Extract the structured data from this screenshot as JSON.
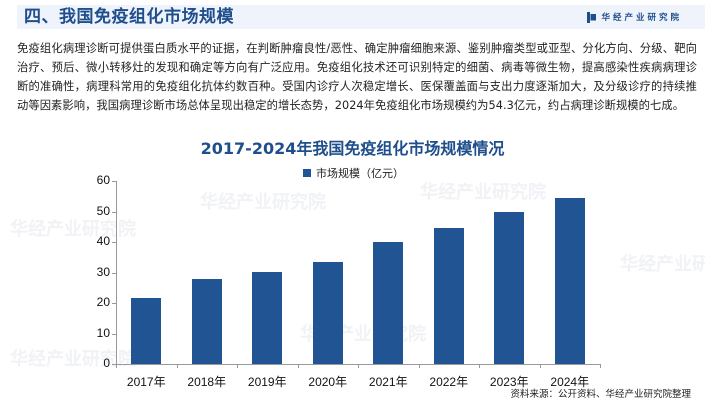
{
  "header": {
    "title": "四、我国免疫组化市场规模",
    "brand": "华经产业研究院"
  },
  "body_text": "免疫组化病理诊断可提供蛋白质水平的证据，在判断肿瘤良性/恶性、确定肿瘤细胞来源、鉴别肿瘤类型或亚型、分化方向、分级、靶向治疗、预后、微小转移灶的发现和确定等方向有广泛应用。免疫组化技术还可识别特定的细菌、病毒等微生物，提高感染性疾病病理诊断的准确性，病理科常用的免疫组化抗体约数百种。受国内诊疗人次稳定增长、医保覆盖面与支出力度逐渐加大，及分级诊疗的持续推动等因素影响，我国病理诊断市场总体呈现出稳定的增长态势，2024年免疫组化市场规模约为54.3亿元，约占病理诊断规模的七成。",
  "watermark": "华经产业研究院",
  "source": "资料来源：公开资料、华经产业研究院整理",
  "colors": {
    "bar": "#215493",
    "title": "#1f4e8c",
    "header_bg": "#eef3fc"
  },
  "chart_data": {
    "type": "bar",
    "title": "2017-2024年我国免疫组化市场规模情况",
    "categories": [
      "2017年",
      "2018年",
      "2019年",
      "2020年",
      "2021年",
      "2022年",
      "2023年",
      "2024年"
    ],
    "series": [
      {
        "name": "市场规模（亿元）",
        "values": [
          21.6,
          27.9,
          30.2,
          33.4,
          40.0,
          44.6,
          49.8,
          54.3
        ]
      }
    ],
    "xlabel": "",
    "ylabel": "",
    "ylim": [
      0,
      60
    ],
    "yticks": [
      0,
      10,
      20,
      30,
      40,
      50,
      60
    ],
    "grid": false,
    "legend_position": "top"
  }
}
